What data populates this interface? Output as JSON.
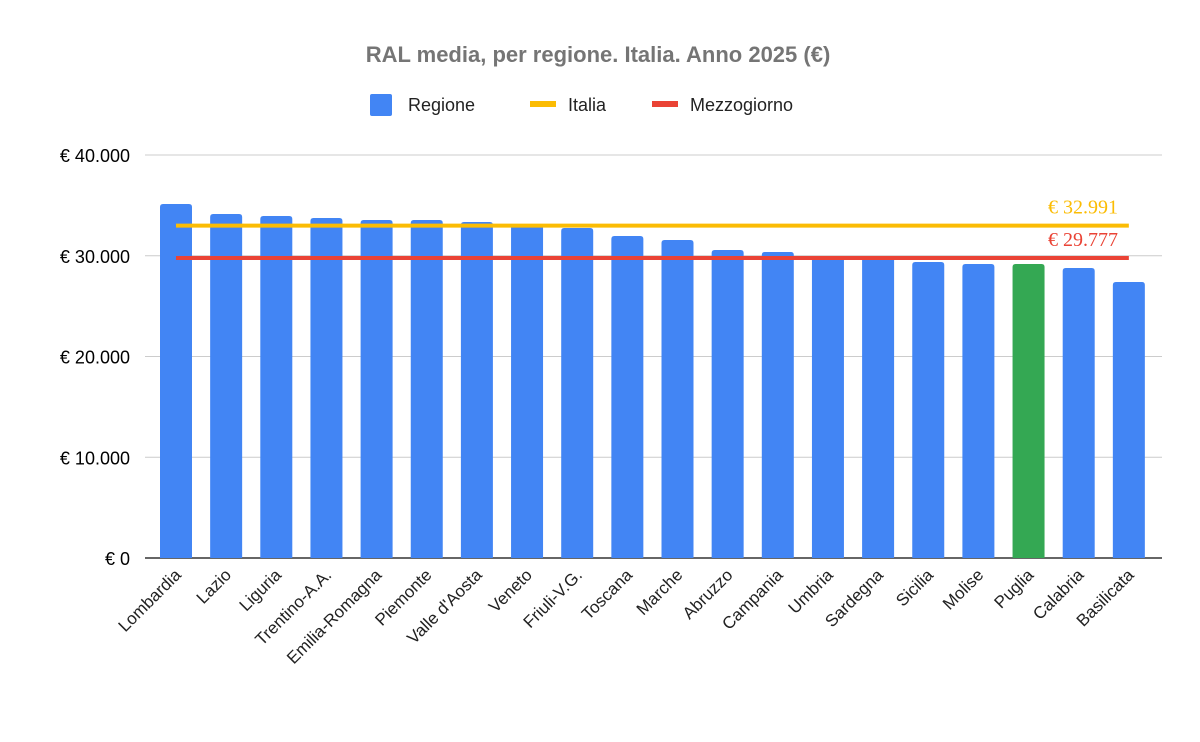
{
  "chart_data": {
    "type": "bar",
    "title": "RAL media, per regione. Italia. Anno 2025 (€)",
    "xlabel": "",
    "ylabel": "",
    "ylim": [
      0,
      40000
    ],
    "yticks": [
      0,
      10000,
      20000,
      30000,
      40000
    ],
    "ytick_labels": [
      "€ 0",
      "€ 10.000",
      "€ 20.000",
      "€ 30.000",
      "€ 40.000"
    ],
    "grid": true,
    "legend_position": "top",
    "legend": [
      {
        "name": "Regione",
        "kind": "bar",
        "color": "#4285f4"
      },
      {
        "name": "Italia",
        "kind": "line",
        "color": "#fbbc04"
      },
      {
        "name": "Mezzogiorno",
        "kind": "line",
        "color": "#ea4335"
      }
    ],
    "categories": [
      "Lombardia",
      "Lazio",
      "Liguria",
      "Trentino-A.A.",
      "Emilia-Romagna",
      "Piemonte",
      "Valle d'Aosta",
      "Veneto",
      "Friuli-V.G.",
      "Toscana",
      "Marche",
      "Abruzzo",
      "Campania",
      "Umbria",
      "Sardegna",
      "Sicilia",
      "Molise",
      "Puglia",
      "Calabria",
      "Basilicata"
    ],
    "series": [
      {
        "name": "Regione",
        "color": "#4285f4",
        "highlight": {
          "category": "Puglia",
          "color": "#34a853"
        },
        "values": [
          35140,
          34140,
          33950,
          33750,
          33550,
          33550,
          33350,
          33100,
          32750,
          31960,
          31560,
          30570,
          30370,
          29900,
          29900,
          29380,
          29180,
          29180,
          28780,
          27400
        ]
      },
      {
        "name": "Italia",
        "color": "#fbbc04",
        "value": 32991,
        "label": "€ 32.991"
      },
      {
        "name": "Mezzogiorno",
        "color": "#ea4335",
        "value": 29777,
        "label": "€ 29.777"
      }
    ]
  }
}
